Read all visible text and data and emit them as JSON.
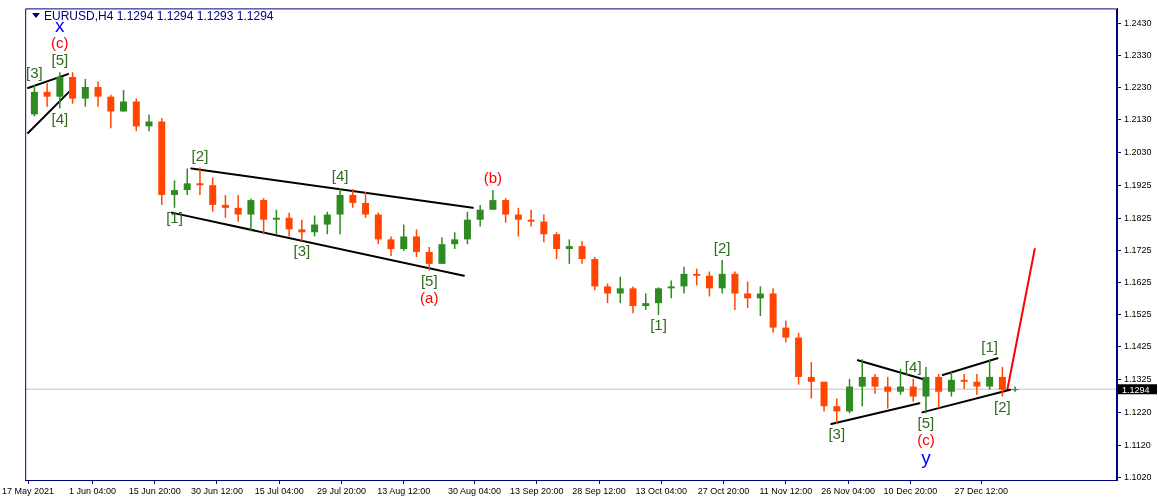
{
  "chart_data": {
    "type": "candlestick",
    "title": "EURUSD,H4 1.1294 1.1294 1.1293 1.1294",
    "x": [
      "2021-05-18T12:00",
      "2021-05-21T12:00",
      "2021-05-24T12:00",
      "2021-05-27T12:00",
      "2021-05-30T12:00",
      "2021-06-02T12:00",
      "2021-06-05T12:00",
      "2021-06-08T12:00",
      "2021-06-11T12:00",
      "2021-06-14T12:00",
      "2021-06-17T12:00",
      "2021-06-20T12:00",
      "2021-06-23T12:00",
      "2021-06-26T12:00",
      "2021-06-29T12:00",
      "2021-07-02T12:00",
      "2021-07-05T12:00",
      "2021-07-08T12:00",
      "2021-07-11T12:00",
      "2021-07-14T12:00",
      "2021-07-17T12:00",
      "2021-07-20T12:00",
      "2021-07-23T12:00",
      "2021-07-26T12:00",
      "2021-07-29T12:00",
      "2021-08-01T12:00",
      "2021-08-04T12:00",
      "2021-08-07T12:00",
      "2021-08-10T12:00",
      "2021-08-13T12:00",
      "2021-08-16T12:00",
      "2021-08-19T12:00",
      "2021-08-22T12:00",
      "2021-08-25T12:00",
      "2021-08-28T12:00",
      "2021-08-31T12:00",
      "2021-09-03T12:00",
      "2021-09-06T12:00",
      "2021-09-09T12:00",
      "2021-09-12T12:00",
      "2021-09-15T12:00",
      "2021-09-18T12:00",
      "2021-09-21T12:00",
      "2021-09-24T12:00",
      "2021-09-27T12:00",
      "2021-09-30T12:00",
      "2021-10-03T12:00",
      "2021-10-06T12:00",
      "2021-10-09T12:00",
      "2021-10-12T12:00",
      "2021-10-15T12:00",
      "2021-10-18T12:00",
      "2021-10-21T12:00",
      "2021-10-24T12:00",
      "2021-10-27T12:00",
      "2021-10-30T12:00",
      "2021-11-02T12:00",
      "2021-11-05T12:00",
      "2021-11-08T12:00",
      "2021-11-11T12:00",
      "2021-11-14T12:00",
      "2021-11-17T12:00",
      "2021-11-20T12:00",
      "2021-11-23T12:00",
      "2021-11-26T12:00",
      "2021-11-29T12:00",
      "2021-12-02T12:00",
      "2021-12-05T12:00",
      "2021-12-08T12:00",
      "2021-12-11T12:00",
      "2021-12-14T12:00",
      "2021-12-17T12:00",
      "2021-12-20T12:00",
      "2021-12-23T12:00",
      "2021-12-26T12:00",
      "2021-12-29T12:00",
      "2022-01-01T12:00",
      "2022-01-04T12:00"
    ],
    "ohlc": [
      [
        1.2147,
        1.2238,
        1.2141,
        1.2217
      ],
      [
        1.2217,
        1.2244,
        1.2171,
        1.2202
      ],
      [
        1.2202,
        1.2278,
        1.2165,
        1.2263
      ],
      [
        1.2263,
        1.2278,
        1.218,
        1.2196
      ],
      [
        1.2196,
        1.2257,
        1.2171,
        1.2232
      ],
      [
        1.2232,
        1.2248,
        1.2171,
        1.2202
      ],
      [
        1.2202,
        1.2208,
        1.2104,
        1.2156
      ],
      [
        1.2156,
        1.2223,
        1.2156,
        1.2187
      ],
      [
        1.2187,
        1.2196,
        1.2095,
        1.211
      ],
      [
        1.211,
        1.2147,
        1.2095,
        1.2125
      ],
      [
        1.2125,
        1.2135,
        1.1866,
        1.1897
      ],
      [
        1.1897,
        1.1942,
        1.1857,
        1.1912
      ],
      [
        1.1912,
        1.1979,
        1.1897,
        1.1933
      ],
      [
        1.1933,
        1.1982,
        1.1897,
        1.1927
      ],
      [
        1.1927,
        1.1951,
        1.1845,
        1.1866
      ],
      [
        1.1866,
        1.1897,
        1.1826,
        1.1857
      ],
      [
        1.1857,
        1.1897,
        1.1814,
        1.1836
      ],
      [
        1.1836,
        1.1885,
        1.1784,
        1.1881
      ],
      [
        1.1881,
        1.1887,
        1.1775,
        1.182
      ],
      [
        1.182,
        1.1851,
        1.1775,
        1.1826
      ],
      [
        1.1826,
        1.1842,
        1.1768,
        1.179
      ],
      [
        1.179,
        1.182,
        1.1753,
        1.1781
      ],
      [
        1.1781,
        1.1833,
        1.1768,
        1.1805
      ],
      [
        1.1805,
        1.1845,
        1.1775,
        1.1836
      ],
      [
        1.1836,
        1.1918,
        1.1775,
        1.1897
      ],
      [
        1.1897,
        1.1915,
        1.1857,
        1.1872
      ],
      [
        1.1872,
        1.1906,
        1.1826,
        1.1836
      ],
      [
        1.1836,
        1.1842,
        1.1744,
        1.1759
      ],
      [
        1.1759,
        1.1768,
        1.1707,
        1.1729
      ],
      [
        1.1729,
        1.1805,
        1.1723,
        1.1768
      ],
      [
        1.1768,
        1.179,
        1.1704,
        1.172
      ],
      [
        1.172,
        1.1735,
        1.1662,
        1.1683
      ],
      [
        1.1683,
        1.1765,
        1.1683,
        1.1744
      ],
      [
        1.1744,
        1.1781,
        1.1729,
        1.1759
      ],
      [
        1.1759,
        1.1845,
        1.1744,
        1.182
      ],
      [
        1.182,
        1.1866,
        1.1799,
        1.1851
      ],
      [
        1.1851,
        1.1912,
        1.1851,
        1.1881
      ],
      [
        1.1881,
        1.1887,
        1.1811,
        1.1836
      ],
      [
        1.1836,
        1.1857,
        1.1768,
        1.182
      ],
      [
        1.182,
        1.1851,
        1.1799,
        1.1814
      ],
      [
        1.1814,
        1.1836,
        1.175,
        1.1775
      ],
      [
        1.1775,
        1.1781,
        1.1698,
        1.1729
      ],
      [
        1.1729,
        1.1759,
        1.1683,
        1.1738
      ],
      [
        1.1738,
        1.1753,
        1.1683,
        1.1698
      ],
      [
        1.1698,
        1.1704,
        1.1601,
        1.1613
      ],
      [
        1.1613,
        1.1622,
        1.1561,
        1.1591
      ],
      [
        1.1591,
        1.1643,
        1.1561,
        1.1607
      ],
      [
        1.1607,
        1.1613,
        1.153,
        1.1552
      ],
      [
        1.1552,
        1.1591,
        1.154,
        1.1561
      ],
      [
        1.1561,
        1.161,
        1.1524,
        1.1607
      ],
      [
        1.1607,
        1.1631,
        1.1576,
        1.1613
      ],
      [
        1.1613,
        1.1674,
        1.1591,
        1.1652
      ],
      [
        1.1652,
        1.1668,
        1.1616,
        1.1646
      ],
      [
        1.1646,
        1.1659,
        1.1582,
        1.1607
      ],
      [
        1.1607,
        1.1695,
        1.1591,
        1.1652
      ],
      [
        1.1652,
        1.1659,
        1.154,
        1.1591
      ],
      [
        1.1591,
        1.1628,
        1.1546,
        1.1576
      ],
      [
        1.1576,
        1.1613,
        1.1521,
        1.1591
      ],
      [
        1.1591,
        1.1607,
        1.1469,
        1.1485
      ],
      [
        1.1485,
        1.1506,
        1.1439,
        1.1454
      ],
      [
        1.1454,
        1.1469,
        1.1308,
        1.1332
      ],
      [
        1.1332,
        1.1378,
        1.1265,
        1.1317
      ],
      [
        1.1317,
        1.1317,
        1.1225,
        1.1241
      ],
      [
        1.1241,
        1.1265,
        1.1186,
        1.1225
      ],
      [
        1.1225,
        1.1326,
        1.1219,
        1.1302
      ],
      [
        1.1302,
        1.1387,
        1.1241,
        1.1332
      ],
      [
        1.1332,
        1.1341,
        1.128,
        1.1302
      ],
      [
        1.1302,
        1.1332,
        1.1234,
        1.1286
      ],
      [
        1.1286,
        1.1357,
        1.1277,
        1.1302
      ],
      [
        1.1302,
        1.1326,
        1.1256,
        1.1271
      ],
      [
        1.1271,
        1.1363,
        1.1219,
        1.1332
      ],
      [
        1.1332,
        1.1341,
        1.1234,
        1.1286
      ],
      [
        1.1286,
        1.1347,
        1.1271,
        1.1323
      ],
      [
        1.1323,
        1.1341,
        1.1295,
        1.1317
      ],
      [
        1.1317,
        1.1341,
        1.1277,
        1.1302
      ],
      [
        1.1302,
        1.1387,
        1.1292,
        1.1332
      ],
      [
        1.1332,
        1.1363,
        1.1271,
        1.1292
      ],
      [
        1.1292,
        1.1302,
        1.1286,
        1.1294
      ]
    ],
    "colors": [
      "#2e8b22",
      "#ff4500",
      "#2e8b22",
      "#ff4500",
      "#2e8b22",
      "#ff4500",
      "#ff4500",
      "#2e8b22",
      "#ff4500",
      "#2e8b22",
      "#ff4500",
      "#2e8b22",
      "#2e8b22",
      "#ff4500",
      "#ff4500",
      "#ff4500",
      "#ff4500",
      "#2e8b22",
      "#ff4500",
      "#2e8b22",
      "#ff4500",
      "#ff4500",
      "#2e8b22",
      "#2e8b22",
      "#2e8b22",
      "#ff4500",
      "#ff4500",
      "#ff4500",
      "#ff4500",
      "#2e8b22",
      "#ff4500",
      "#ff4500",
      "#2e8b22",
      "#2e8b22",
      "#2e8b22",
      "#2e8b22",
      "#2e8b22",
      "#ff4500",
      "#ff4500",
      "#ff4500",
      "#ff4500",
      "#ff4500",
      "#2e8b22",
      "#ff4500",
      "#ff4500",
      "#ff4500",
      "#2e8b22",
      "#ff4500",
      "#2e8b22",
      "#2e8b22",
      "#2e8b22",
      "#2e8b22",
      "#ff4500",
      "#ff4500",
      "#2e8b22",
      "#ff4500",
      "#ff4500",
      "#2e8b22",
      "#ff4500",
      "#ff4500",
      "#ff4500",
      "#ff4500",
      "#ff4500",
      "#ff4500",
      "#2e8b22",
      "#2e8b22",
      "#ff4500",
      "#ff4500",
      "#2e8b22",
      "#ff4500",
      "#2e8b22",
      "#ff4500",
      "#2e8b22",
      "#ff4500",
      "#ff4500",
      "#2e8b22",
      "#ff4500",
      "#2e8b22"
    ],
    "series": [
      {
        "type": "line",
        "color": "#000000",
        "x": [
          "2021-05-17T00:00",
          "2021-05-26T16:00"
        ],
        "values": [
          1.2089,
          1.2217
        ]
      },
      {
        "type": "line",
        "color": "#000000",
        "x": [
          "2021-05-17T00:00",
          "2021-05-26T10:00"
        ],
        "values": [
          1.2229,
          1.2272
        ]
      },
      {
        "type": "line",
        "color": "#000000",
        "x": [
          "2021-06-24T11:00",
          "2021-08-29T18:00"
        ],
        "values": [
          1.1979,
          1.1857
        ]
      },
      {
        "type": "line",
        "color": "#000000",
        "x": [
          "2021-06-19T20:00",
          "2021-08-27T16:00"
        ],
        "values": [
          1.1842,
          1.1646
        ]
      },
      {
        "type": "line",
        "color": "#000000",
        "x": [
          "2021-11-22T05:00",
          "2021-12-12T23:00"
        ],
        "values": [
          1.1186,
          1.125
        ]
      },
      {
        "type": "line",
        "color": "#000000",
        "x": [
          "2021-11-28T11:00",
          "2021-12-14T08:00"
        ],
        "values": [
          1.1384,
          1.1323
        ]
      },
      {
        "type": "line",
        "color": "#000000",
        "x": [
          "2021-12-13T15:00",
          "2022-01-03T08:00"
        ],
        "values": [
          1.1222,
          1.1292
        ]
      },
      {
        "type": "line",
        "color": "#000000",
        "x": [
          "2021-12-18T11:00",
          "2021-12-31T09:00"
        ],
        "values": [
          1.1338,
          1.139
        ]
      },
      {
        "type": "line",
        "color": "#ff0000",
        "x": [
          "2022-01-02T16:00",
          "2022-01-09T03:00"
        ],
        "values": [
          1.1292,
          1.1729
        ]
      }
    ],
    "annotations": [
      {
        "text": "[5]",
        "x": "2021-05-24T12:00",
        "y": 1.2278
      },
      {
        "text": "(c)",
        "x": "2021-05-24T12:00",
        "y": 1.2278
      },
      {
        "text": "x",
        "x": "2021-05-24T12:00",
        "y": 1.2278
      },
      {
        "text": "[3]",
        "x": "2021-05-18T12:00",
        "y": 1.2238
      },
      {
        "text": "[4]",
        "x": "2021-05-24T12:00",
        "y": 1.2165
      },
      {
        "text": "[2]",
        "x": "2021-06-26T12:00",
        "y": 1.1982
      },
      {
        "text": "[1]",
        "x": "2021-06-20T12:00",
        "y": 1.1857
      },
      {
        "text": "[3]",
        "x": "2021-07-20T12:00",
        "y": 1.1753
      },
      {
        "text": "[4]",
        "x": "2021-07-29T12:00",
        "y": 1.1918
      },
      {
        "text": "[5]",
        "x": "2021-08-19T12:00",
        "y": 1.1662
      },
      {
        "text": "(a)",
        "x": "2021-08-19T12:00",
        "y": 1.1662
      },
      {
        "text": "(b)",
        "x": "2021-09-03T12:00",
        "y": 1.1912
      },
      {
        "text": "[1]",
        "x": "2021-10-12T12:00",
        "y": 1.1524
      },
      {
        "text": "[2]",
        "x": "2021-10-27T12:00",
        "y": 1.1695
      },
      {
        "text": "[3]",
        "x": "2021-11-23T12:00",
        "y": 1.1186
      },
      {
        "text": "[4]",
        "x": "2021-12-11T12:00",
        "y": 1.1326
      },
      {
        "text": "[5]",
        "x": "2021-12-14T12:00",
        "y": 1.1219
      },
      {
        "text": "(c)",
        "x": "2021-12-14T12:00",
        "y": 1.1219
      },
      {
        "text": "y",
        "x": "2021-12-14T12:00",
        "y": 1.1219
      },
      {
        "text": "[1]",
        "x": "2021-12-29T12:00",
        "y": 1.1387
      },
      {
        "text": "[2]",
        "x": "2022-01-01T12:00",
        "y": 1.1271
      }
    ],
    "ref_lines": [
      {
        "axis": "y",
        "value": 1.1294,
        "label": "1.1294",
        "color": "#c0c0c0"
      }
    ],
    "xlim": [
      "2021-05-16T08:00",
      "2022-01-28T12:00"
    ],
    "xticks": [
      {
        "value": "2021-05-17T00:00",
        "label": "17 May 2021"
      },
      {
        "value": "2021-06-01T04:00",
        "label": "1 Jun 04:00"
      },
      {
        "value": "2021-06-15T20:00",
        "label": "15 Jun 20:00"
      },
      {
        "value": "2021-06-30T12:00",
        "label": "30 Jun 12:00"
      },
      {
        "value": "2021-07-15T04:00",
        "label": "15 Jul 04:00"
      },
      {
        "value": "2021-07-29T20:00",
        "label": "29 Jul 20:00"
      },
      {
        "value": "2021-08-13T12:00",
        "label": "13 Aug 12:00"
      },
      {
        "value": "2021-08-30T04:00",
        "label": "30 Aug 04:00"
      },
      {
        "value": "2021-09-13T20:00",
        "label": "13 Sep 20:00"
      },
      {
        "value": "2021-09-28T12:00",
        "label": "28 Sep 12:00"
      },
      {
        "value": "2021-10-13T04:00",
        "label": "13 Oct 04:00"
      },
      {
        "value": "2021-10-27T20:00",
        "label": "27 Oct 20:00"
      },
      {
        "value": "2021-11-11T12:00",
        "label": "11 Nov 12:00"
      },
      {
        "value": "2021-11-26T04:00",
        "label": "26 Nov 04:00"
      },
      {
        "value": "2021-12-10T20:00",
        "label": "10 Dec 20:00"
      },
      {
        "value": "2021-12-27T12:00",
        "label": "27 Dec 12:00"
      }
    ],
    "ylim": [
      1.1012,
      1.2476
    ],
    "yticks": [
      {
        "value": 1.243,
        "label": "1.2430"
      },
      {
        "value": 1.233,
        "label": "1.2330"
      },
      {
        "value": 1.223,
        "label": "1.2230"
      },
      {
        "value": 1.213,
        "label": "1.2130"
      },
      {
        "value": 1.203,
        "label": "1.2030"
      },
      {
        "value": 1.1925,
        "label": "1.1925"
      },
      {
        "value": 1.1825,
        "label": "1.1825"
      },
      {
        "value": 1.1725,
        "label": "1.1725"
      },
      {
        "value": 1.1625,
        "label": "1.1625"
      },
      {
        "value": 1.1525,
        "label": "1.1525"
      },
      {
        "value": 1.1425,
        "label": "1.1425"
      },
      {
        "value": 1.1325,
        "label": "1.1325"
      },
      {
        "value": 1.122,
        "label": "1.1220"
      },
      {
        "value": 1.112,
        "label": "1.1120"
      },
      {
        "value": 1.102,
        "label": "1.1020"
      }
    ],
    "grid": false,
    "legend": false
  }
}
